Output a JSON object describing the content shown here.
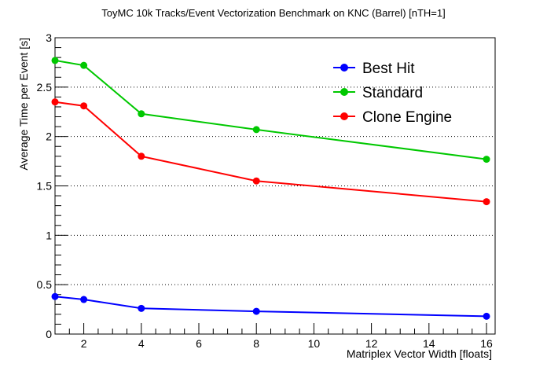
{
  "chart_data": {
    "type": "line",
    "title": "ToyMC 10k Tracks/Event Vectorization Benchmark on KNC (Barrel) [nTH=1]",
    "xlabel": "Matriplex Vector Width [floats]",
    "ylabel": "Average Time per Event [s]",
    "xlim": [
      1,
      16.3
    ],
    "ylim": [
      0,
      3
    ],
    "x_ticks": [
      2,
      4,
      6,
      8,
      10,
      12,
      14,
      16
    ],
    "x_tick_labels": [
      "2",
      "4",
      "6",
      "8",
      "10",
      "12",
      "14",
      "16"
    ],
    "y_ticks": [
      0,
      0.5,
      1,
      1.5,
      2,
      2.5,
      3
    ],
    "y_tick_labels": [
      "0",
      "0.5",
      "1",
      "1.5",
      "2",
      "2.5",
      "3"
    ],
    "grid": "horizontal dotted",
    "legend_position": "top-right",
    "x": [
      1,
      2,
      4,
      8,
      16
    ],
    "series": [
      {
        "name": "Best Hit",
        "color": "#0000ff",
        "values": [
          0.38,
          0.35,
          0.26,
          0.23,
          0.18
        ]
      },
      {
        "name": "Standard",
        "color": "#00c800",
        "values": [
          2.77,
          2.72,
          2.23,
          2.07,
          1.77
        ]
      },
      {
        "name": "Clone Engine",
        "color": "#ff0000",
        "values": [
          2.35,
          2.31,
          1.8,
          1.55,
          1.34
        ]
      }
    ]
  }
}
